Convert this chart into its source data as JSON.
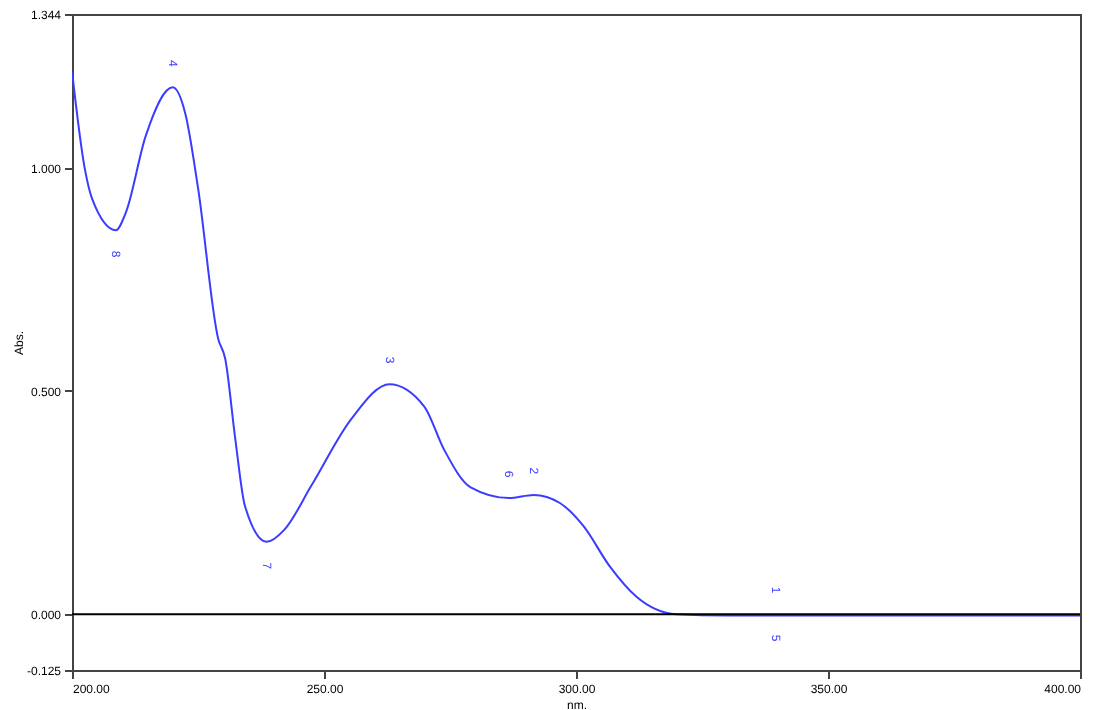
{
  "chart_data": {
    "type": "line",
    "xlabel": "nm.",
    "ylabel": "Abs.",
    "x": [
      200,
      202.5,
      204,
      208.7,
      210.7,
      214.6,
      220,
      222.5,
      225,
      229,
      230.4,
      232.4,
      234.3,
      238.6,
      242.2,
      247.5,
      255.4,
      263,
      269.9,
      273.8,
      279.1,
      286.7,
      291.6,
      296.8,
      301.5,
      306.7,
      312,
      319.9,
      330,
      340,
      350,
      375,
      400
    ],
    "series": [
      {
        "color": "#3c3cff",
        "values": [
          1.216,
          1.0,
          0.93,
          0.86,
          0.9,
          1.07,
          1.18,
          1.12,
          0.955,
          0.617,
          0.572,
          0.392,
          0.243,
          0.162,
          0.19,
          0.288,
          0.437,
          0.515,
          0.465,
          0.369,
          0.284,
          0.26,
          0.267,
          0.249,
          0.197,
          0.107,
          0.039,
          0.0,
          -0.003,
          -0.003,
          -0.003,
          -0.003,
          -0.003
        ]
      }
    ],
    "xlim": [
      200,
      400
    ],
    "ylim": [
      -0.125,
      1.344
    ],
    "xticks": [
      {
        "value": 200,
        "label": "200.00"
      },
      {
        "value": 250,
        "label": "250.00"
      },
      {
        "value": 300,
        "label": "300.00"
      },
      {
        "value": 350,
        "label": "350.00"
      },
      {
        "value": 400,
        "label": "400.00"
      }
    ],
    "yticks": [
      {
        "value": -0.125,
        "label": "-0.125"
      },
      {
        "value": 0,
        "label": "0.000"
      },
      {
        "value": 0.5,
        "label": "0.500"
      },
      {
        "value": 1,
        "label": "1.000"
      },
      {
        "value": 1.344,
        "label": "1.344"
      }
    ],
    "ref_lines": [
      {
        "axis": "y",
        "value": 0,
        "color": "#000000"
      }
    ],
    "annotations": [
      {
        "text": "4",
        "x": 220,
        "y": 1.18
      },
      {
        "text": "8",
        "x": 208.7,
        "y": 0.86
      },
      {
        "text": "7",
        "x": 238.6,
        "y": 0.162
      },
      {
        "text": "3",
        "x": 263,
        "y": 0.515
      },
      {
        "text": "6",
        "x": 286.7,
        "y": 0.26
      },
      {
        "text": "2",
        "x": 291.6,
        "y": 0.267
      },
      {
        "text": "1",
        "x": 339.6,
        "y": 0.0
      },
      {
        "text": "5",
        "x": 339.6,
        "y": 0.0
      }
    ],
    "grid": false,
    "marker": "none",
    "line_style": "solid"
  }
}
